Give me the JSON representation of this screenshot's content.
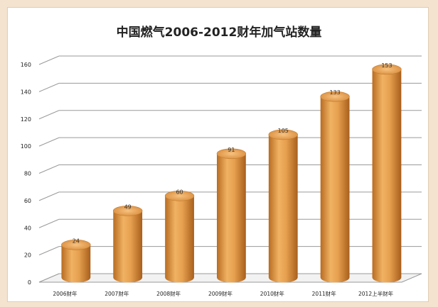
{
  "chart_data": {
    "type": "bar",
    "title": "中国燃气2006-2012财年加气站数量",
    "xlabel": "",
    "ylabel": "",
    "categories": [
      "2006财年",
      "2007财年",
      "2008财年",
      "2009财年",
      "2010财年",
      "2011财年",
      "2012上半财年"
    ],
    "values": [
      24,
      49,
      60,
      91,
      105,
      133,
      153
    ],
    "data_labels": [
      "24",
      "49",
      "60",
      "91",
      "105",
      "133",
      "153"
    ],
    "ylim": [
      0,
      160
    ],
    "yticks": [
      "0",
      "20",
      "40",
      "60",
      "80",
      "100",
      "120",
      "140",
      "160"
    ],
    "grid": true,
    "legend": "none",
    "style": "3d-cylinder",
    "bar_color": "#e09a45"
  }
}
